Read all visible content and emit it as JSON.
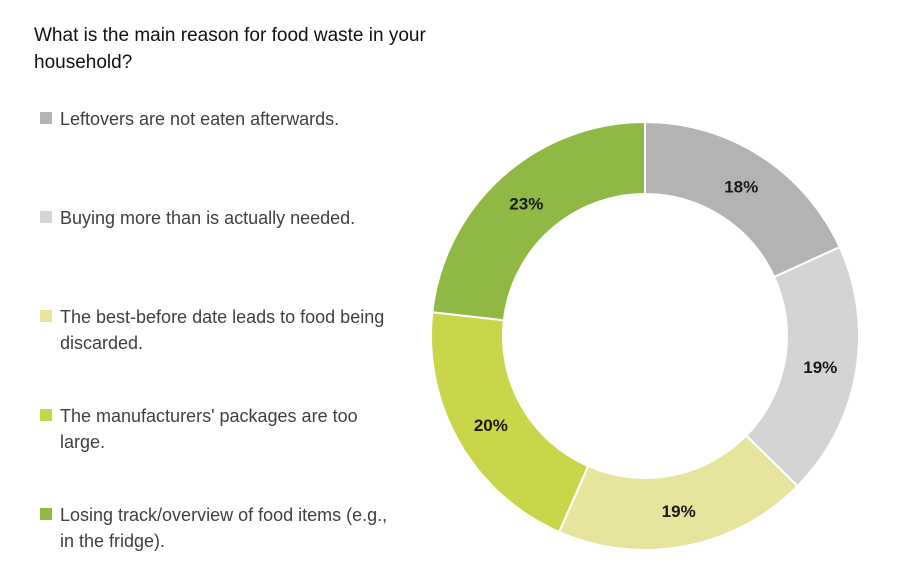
{
  "chart_data": {
    "type": "pie",
    "title": "What is the main reason for food waste in your household?",
    "slices": [
      {
        "label": "Leftovers are not eaten afterwards.",
        "value": 18,
        "value_label": "18%",
        "color": "#b3b3b3"
      },
      {
        "label": "Buying more than is actually needed.",
        "value": 19,
        "value_label": "19%",
        "color": "#d4d4d2"
      },
      {
        "label": "The best-before date leads to food being discarded.",
        "value": 19,
        "value_label": "19%",
        "color": "#e6e49d"
      },
      {
        "label": "The manufacturers' packages are too large.",
        "value": 20,
        "value_label": "20%",
        "color": "#c9d64a"
      },
      {
        "label": "Losing track/overview of food items (e.g., in the fridge).",
        "value": 23,
        "value_label": "23%",
        "color": "#8fb845"
      }
    ],
    "legend_position": "left"
  }
}
